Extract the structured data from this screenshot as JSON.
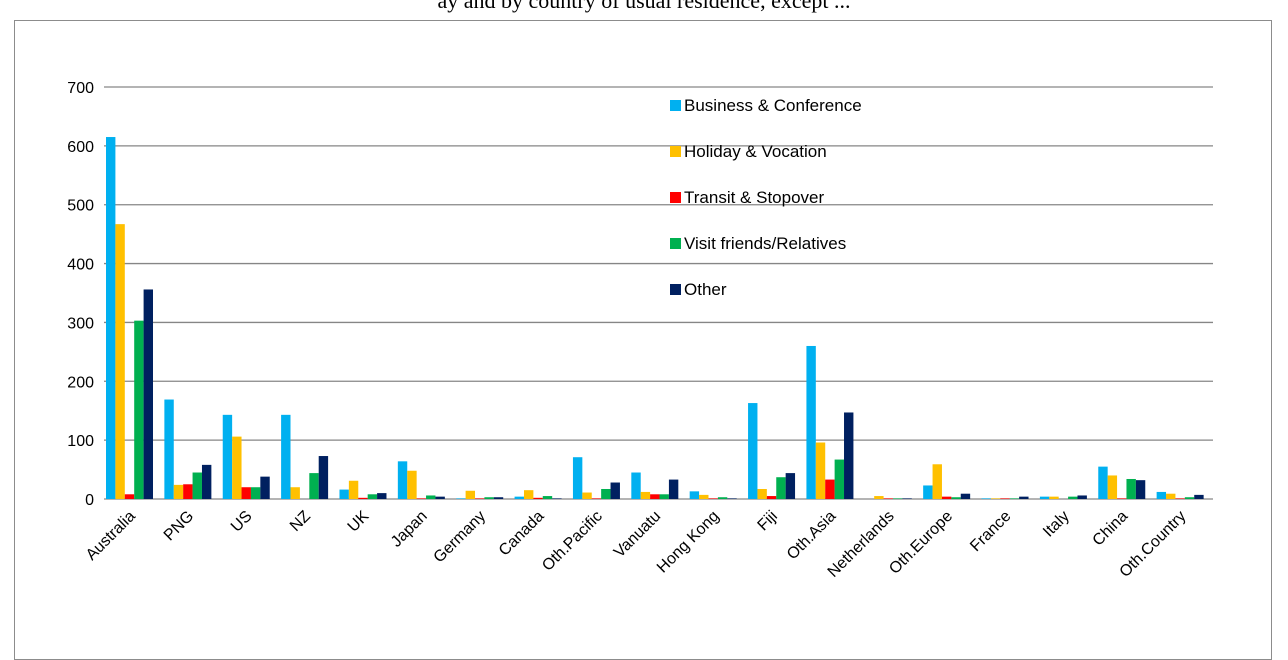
{
  "page": {
    "title": "ay and by country of usual residence, except ..."
  },
  "chart_data": {
    "type": "bar",
    "title": "",
    "xlabel": "",
    "ylabel": "",
    "ylim": [
      0,
      700
    ],
    "yticks": [
      0,
      100,
      200,
      300,
      400,
      500,
      600,
      700
    ],
    "grid": true,
    "legend_position": "top-right",
    "categories": [
      "Australia",
      "PNG",
      "US",
      "NZ",
      "UK",
      "Japan",
      "Germany",
      "Canada",
      "Oth.Pacific",
      "Vanuatu",
      "Hong Kong",
      "Fiji",
      "Oth.Asia",
      "Netherlands",
      "Oth.Europe",
      "France",
      "Italy",
      "China",
      "Oth.Country"
    ],
    "series": [
      {
        "name": "Business & Conference",
        "color": "#00b0f0",
        "values": [
          615,
          169,
          143,
          143,
          16,
          64,
          1,
          4,
          71,
          45,
          13,
          163,
          260,
          0,
          23,
          1,
          4,
          55,
          12
        ]
      },
      {
        "name": "Holiday & Vocation",
        "color": "#ffc000",
        "values": [
          467,
          24,
          106,
          20,
          31,
          48,
          14,
          15,
          11,
          12,
          7,
          17,
          96,
          5,
          59,
          1,
          4,
          40,
          9
        ]
      },
      {
        "name": "Transit & Stopover",
        "color": "#ff0000",
        "values": [
          8,
          25,
          20,
          0,
          2,
          1,
          1,
          2,
          1,
          8,
          1,
          5,
          33,
          1,
          4,
          1,
          0,
          1,
          1
        ]
      },
      {
        "name": "Visit friends/Relatives",
        "color": "#00b050",
        "values": [
          303,
          45,
          20,
          44,
          8,
          6,
          3,
          5,
          17,
          8,
          3,
          37,
          67,
          1,
          3,
          1,
          4,
          34,
          3
        ]
      },
      {
        "name": "Other",
        "color": "#002060",
        "values": [
          356,
          58,
          38,
          73,
          10,
          4,
          3,
          1,
          28,
          33,
          1,
          44,
          147,
          1,
          9,
          4,
          6,
          32,
          7
        ]
      }
    ]
  }
}
